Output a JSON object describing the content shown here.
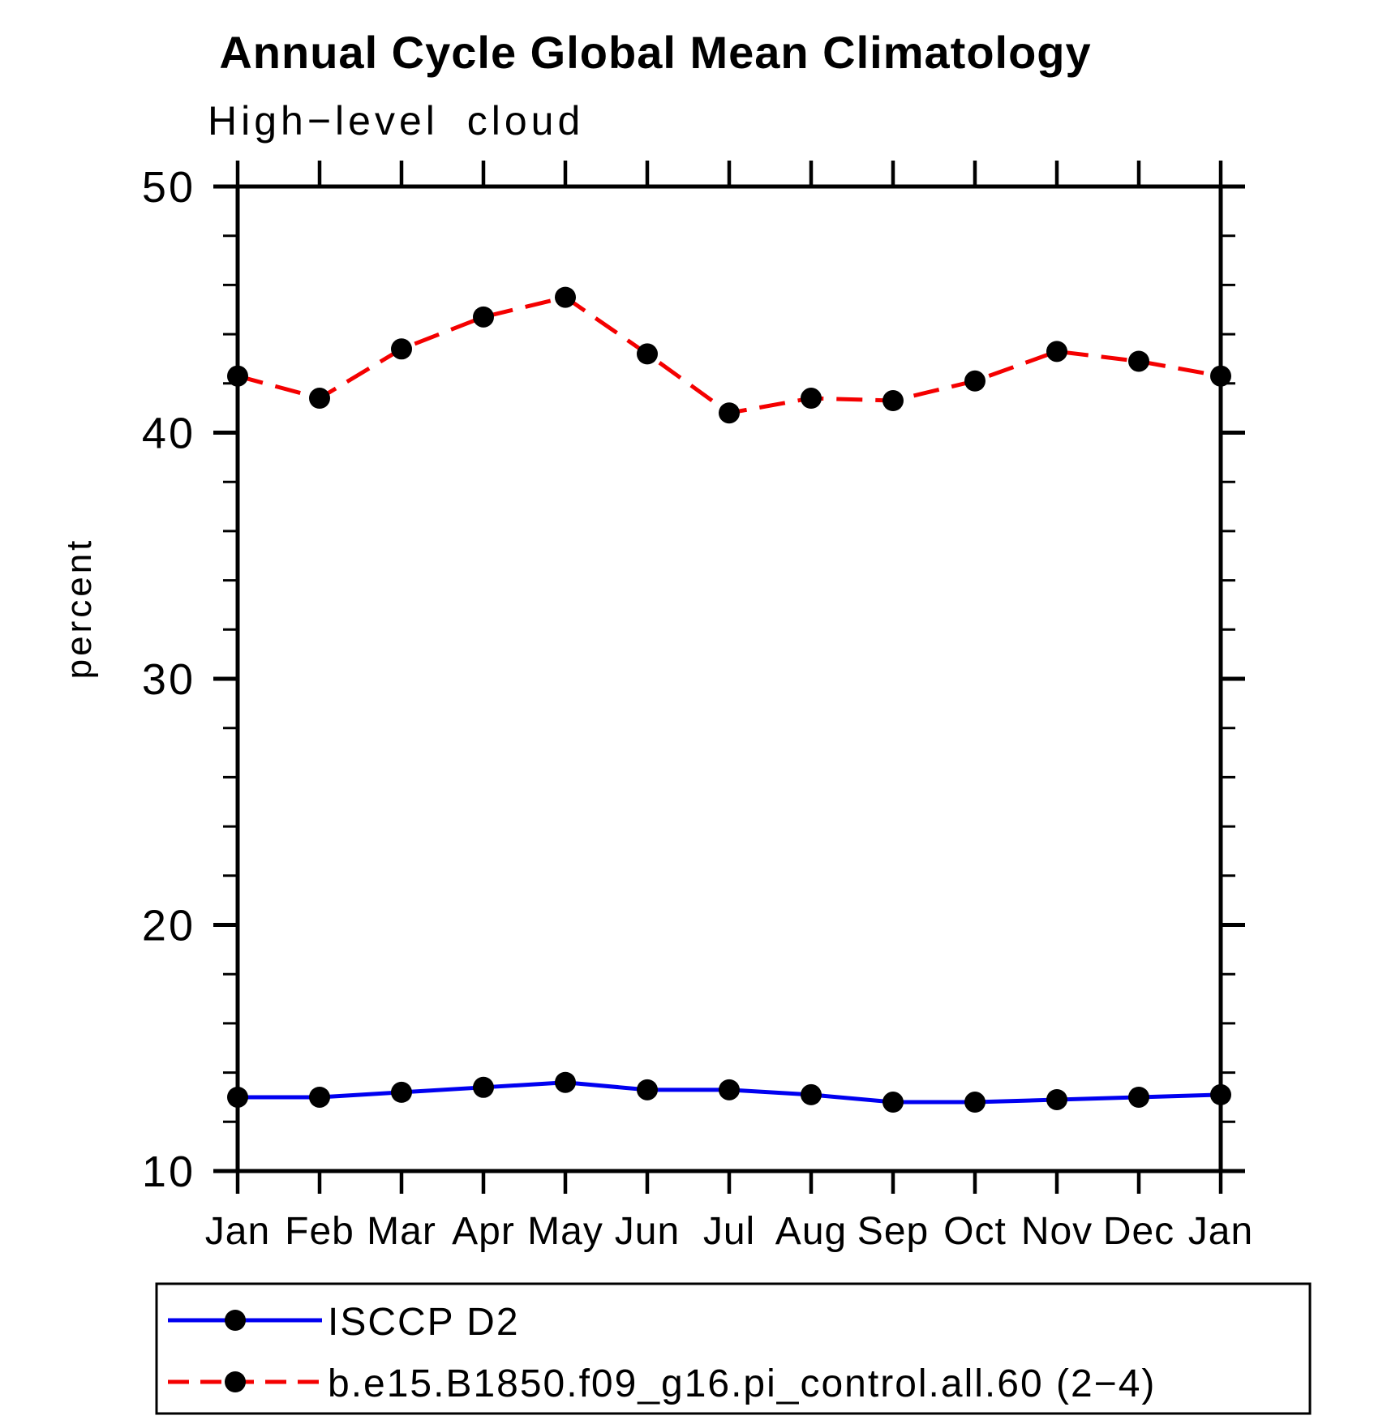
{
  "chart_data": {
    "type": "line",
    "title": "Annual Cycle Global Mean Climatology",
    "subtitle": "High−level cloud",
    "ylabel": "percent",
    "xlabel": "",
    "ylim": [
      10,
      50
    ],
    "y_major_ticks": [
      10,
      20,
      30,
      40,
      50
    ],
    "y_minor_step": 2,
    "grid": false,
    "legend_position": "bottom",
    "categories": [
      "Jan",
      "Feb",
      "Mar",
      "Apr",
      "May",
      "Jun",
      "Jul",
      "Aug",
      "Sep",
      "Oct",
      "Nov",
      "Dec",
      "Jan"
    ],
    "series": [
      {
        "name": "ISCCP D2",
        "color": "#0000f0",
        "line_style": "solid",
        "marker": "black-dot",
        "marker_color": "#000000",
        "values": [
          13.0,
          13.0,
          13.2,
          13.4,
          13.6,
          13.3,
          13.3,
          13.1,
          12.8,
          12.8,
          12.9,
          13.0,
          13.1
        ]
      },
      {
        "name": "b.e15.B1850.f09_g16.pi_control.all.60 (2−4)",
        "color": "#f40000",
        "line_style": "dashed",
        "marker": "black-dot",
        "marker_color": "#000000",
        "values": [
          42.3,
          41.4,
          43.4,
          44.7,
          45.5,
          43.2,
          40.8,
          41.4,
          41.3,
          42.1,
          43.3,
          42.9,
          42.3
        ]
      }
    ]
  }
}
